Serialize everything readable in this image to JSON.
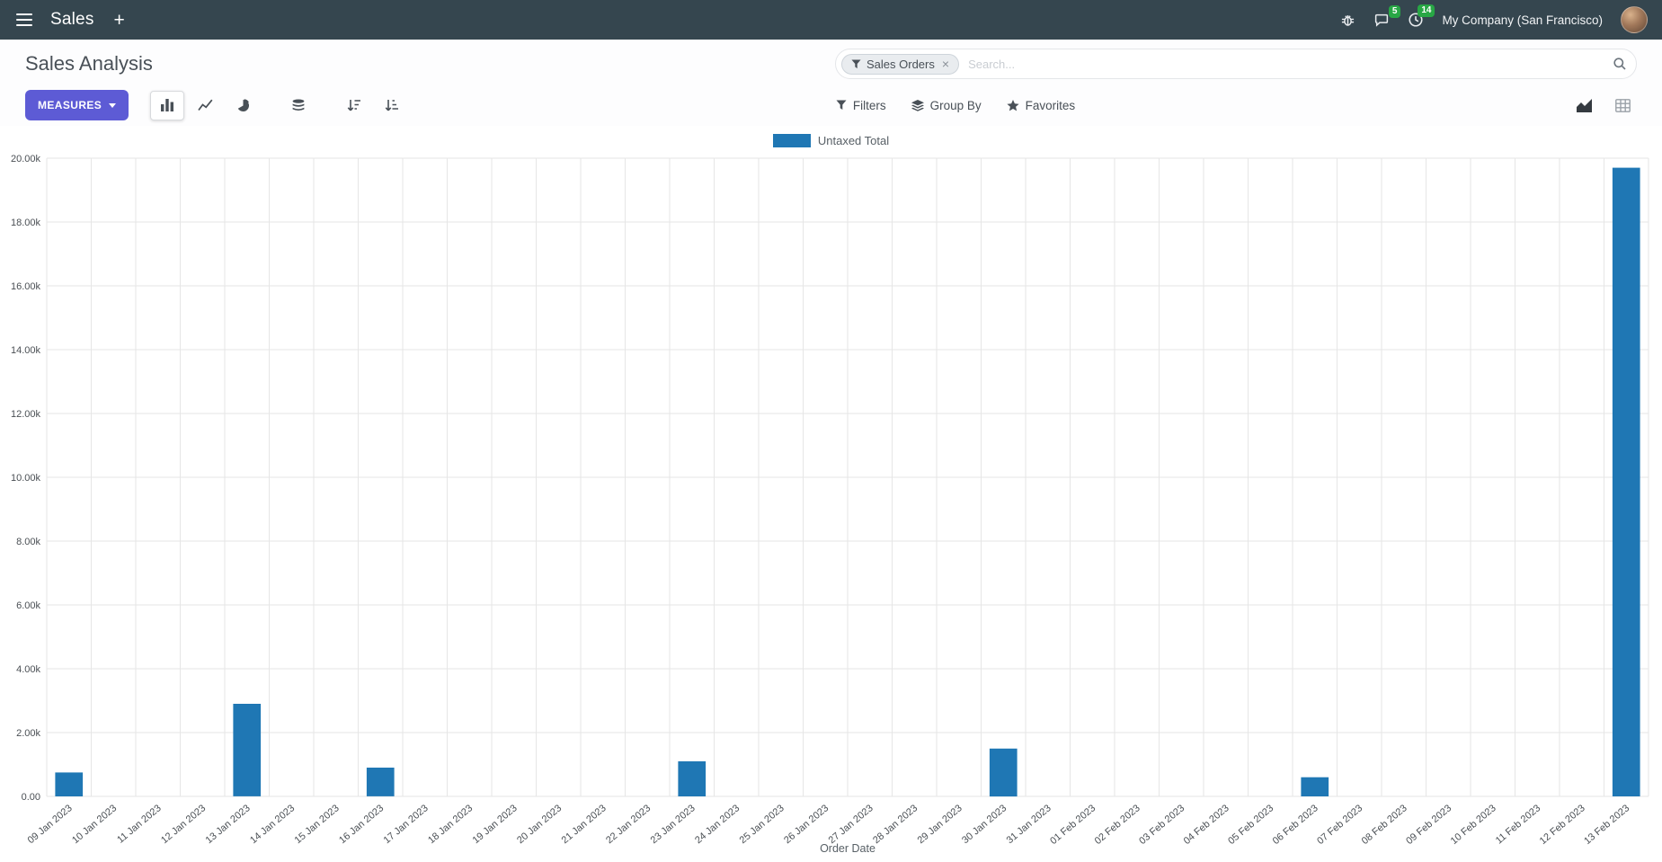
{
  "navbar": {
    "app_name": "Sales",
    "plus_label": "+",
    "message_count": "5",
    "activity_count": "14",
    "company": "My Company (San Francisco)"
  },
  "control_panel": {
    "title": "Sales Analysis",
    "search": {
      "facet": "Sales Orders",
      "facet_close": "×",
      "placeholder": "Search..."
    },
    "measures_label": "MEASURES",
    "filters_label": "Filters",
    "group_by_label": "Group By",
    "favorites_label": "Favorites"
  },
  "chart_data": {
    "type": "bar",
    "title": "",
    "xlabel": "Order Date",
    "ylabel": "",
    "ylim": [
      0,
      20000
    ],
    "ytick_step": 2000,
    "grid": true,
    "legend_position": "top",
    "categories": [
      "09 Jan 2023",
      "10 Jan 2023",
      "11 Jan 2023",
      "12 Jan 2023",
      "13 Jan 2023",
      "14 Jan 2023",
      "15 Jan 2023",
      "16 Jan 2023",
      "17 Jan 2023",
      "18 Jan 2023",
      "19 Jan 2023",
      "20 Jan 2023",
      "21 Jan 2023",
      "22 Jan 2023",
      "23 Jan 2023",
      "24 Jan 2023",
      "25 Jan 2023",
      "26 Jan 2023",
      "27 Jan 2023",
      "28 Jan 2023",
      "29 Jan 2023",
      "30 Jan 2023",
      "31 Jan 2023",
      "01 Feb 2023",
      "02 Feb 2023",
      "03 Feb 2023",
      "04 Feb 2023",
      "05 Feb 2023",
      "06 Feb 2023",
      "07 Feb 2023",
      "08 Feb 2023",
      "09 Feb 2023",
      "10 Feb 2023",
      "11 Feb 2023",
      "12 Feb 2023",
      "13 Feb 2023"
    ],
    "series": [
      {
        "name": "Untaxed Total",
        "color": "#1f77b4",
        "values": [
          750,
          0,
          0,
          0,
          2900,
          0,
          0,
          900,
          0,
          0,
          0,
          0,
          0,
          0,
          1100,
          0,
          0,
          0,
          0,
          0,
          0,
          1500,
          0,
          0,
          0,
          0,
          0,
          0,
          600,
          0,
          0,
          0,
          0,
          0,
          0,
          19700
        ]
      }
    ]
  }
}
